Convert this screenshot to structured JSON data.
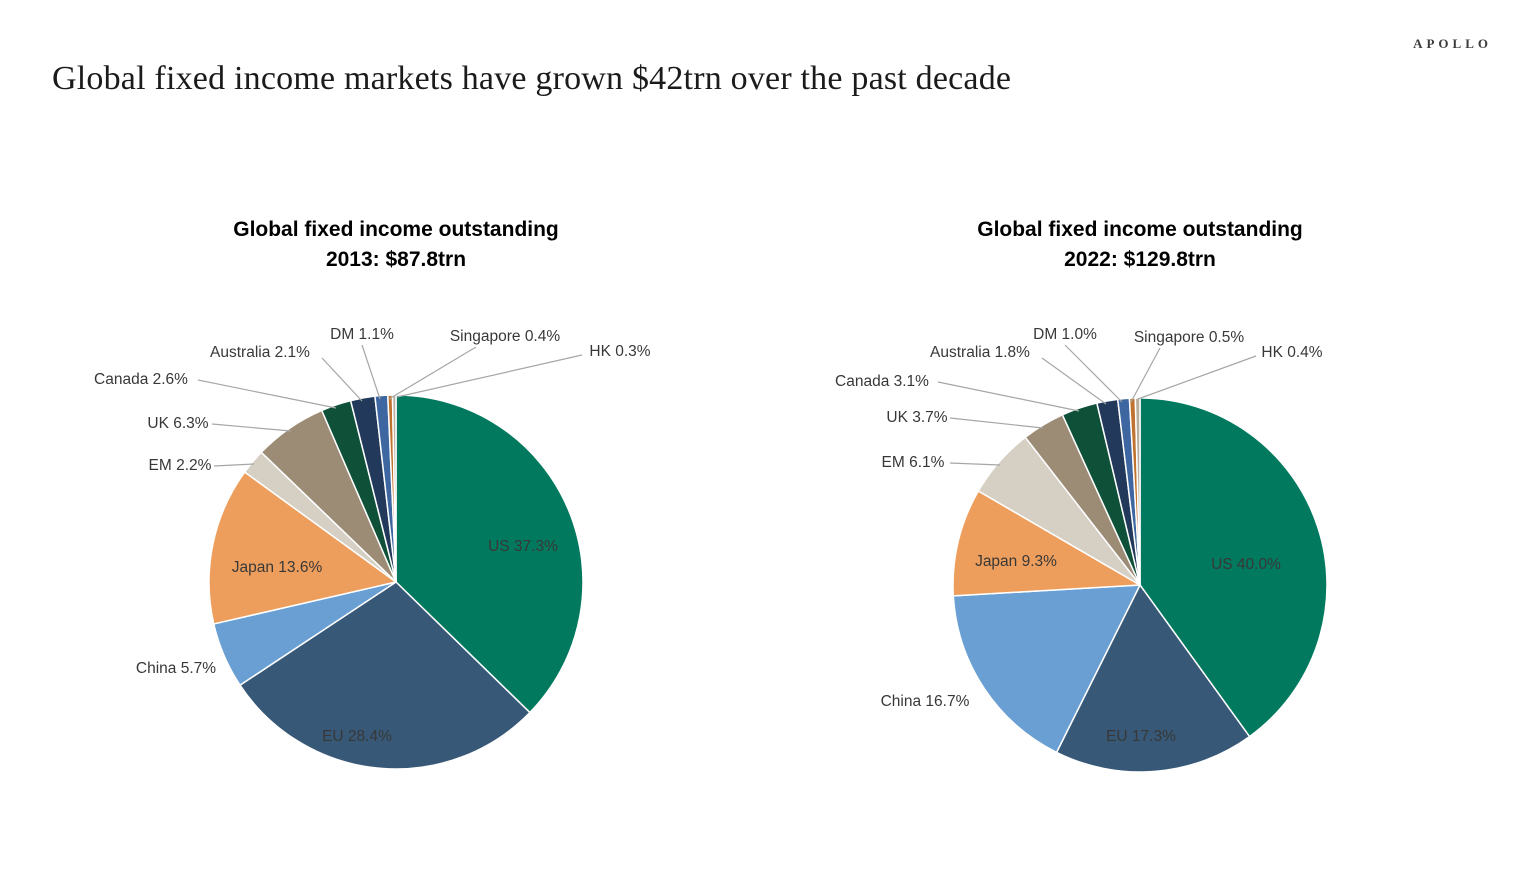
{
  "page": {
    "brand": "APOLLO",
    "title": "Global fixed income markets have grown $42trn over the past decade"
  },
  "chart_data": [
    {
      "type": "pie",
      "title": "Global fixed income outstanding 2013: $87.8trn",
      "title_line1": "Global fixed income outstanding",
      "title_line2": "2013: $87.8trn",
      "year": "2013",
      "total_label": "$87.8trn",
      "start_angle_deg": 0,
      "direction": "clockwise",
      "slice_border_color": "#FFFFFF",
      "leader_line_color": "#A6A6A6",
      "slices": [
        {
          "label": "US",
          "value": 37.3,
          "display": "US 37.3%",
          "color": "#00795E",
          "label_placement": "inside"
        },
        {
          "label": "EU",
          "value": 28.4,
          "display": "EU 28.4%",
          "color": "#375877",
          "label_placement": "inside"
        },
        {
          "label": "China",
          "value": 5.7,
          "display": "China 5.7%",
          "color": "#699FD2",
          "label_placement": "outside"
        },
        {
          "label": "Japan",
          "value": 13.6,
          "display": "Japan 13.6%",
          "color": "#EE9E5C",
          "label_placement": "inside"
        },
        {
          "label": "EM",
          "value": 2.2,
          "display": "EM 2.2%",
          "color": "#D5CFC4",
          "label_placement": "outside"
        },
        {
          "label": "UK",
          "value": 6.3,
          "display": "UK 6.3%",
          "color": "#9C8C76",
          "label_placement": "outside"
        },
        {
          "label": "Canada",
          "value": 2.6,
          "display": "Canada 2.6%",
          "color": "#0E5138",
          "label_placement": "outside"
        },
        {
          "label": "Australia",
          "value": 2.1,
          "display": "Australia 2.1%",
          "color": "#22395B",
          "label_placement": "outside"
        },
        {
          "label": "DM",
          "value": 1.1,
          "display": "DM 1.1%",
          "color": "#3E66A0",
          "label_placement": "outside"
        },
        {
          "label": "Singapore",
          "value": 0.4,
          "display": "Singapore 0.4%",
          "color": "#C0732E",
          "label_placement": "outside"
        },
        {
          "label": "HK",
          "value": 0.3,
          "display": "HK 0.3%",
          "color": "#B7AE9E",
          "label_placement": "outside"
        }
      ]
    },
    {
      "type": "pie",
      "title": "Global fixed income outstanding 2022: $129.8trn",
      "title_line1": "Global fixed income outstanding",
      "title_line2": "2022: $129.8trn",
      "year": "2022",
      "total_label": "$129.8trn",
      "start_angle_deg": 0,
      "direction": "clockwise",
      "slice_border_color": "#FFFFFF",
      "leader_line_color": "#A6A6A6",
      "slices": [
        {
          "label": "US",
          "value": 40.0,
          "display": "US 40.0%",
          "color": "#00795E",
          "label_placement": "inside"
        },
        {
          "label": "EU",
          "value": 17.3,
          "display": "EU 17.3%",
          "color": "#375877",
          "label_placement": "inside"
        },
        {
          "label": "China",
          "value": 16.7,
          "display": "China 16.7%",
          "color": "#699FD2",
          "label_placement": "outside"
        },
        {
          "label": "Japan",
          "value": 9.3,
          "display": "Japan 9.3%",
          "color": "#EE9E5C",
          "label_placement": "inside"
        },
        {
          "label": "EM",
          "value": 6.1,
          "display": "EM 6.1%",
          "color": "#D5CFC4",
          "label_placement": "outside"
        },
        {
          "label": "UK",
          "value": 3.7,
          "display": "UK 3.7%",
          "color": "#9C8C76",
          "label_placement": "outside"
        },
        {
          "label": "Canada",
          "value": 3.1,
          "display": "Canada 3.1%",
          "color": "#0E5138",
          "label_placement": "outside"
        },
        {
          "label": "Australia",
          "value": 1.8,
          "display": "Australia 1.8%",
          "color": "#22395B",
          "label_placement": "outside"
        },
        {
          "label": "DM",
          "value": 1.0,
          "display": "DM 1.0%",
          "color": "#3E66A0",
          "label_placement": "outside"
        },
        {
          "label": "Singapore",
          "value": 0.5,
          "display": "Singapore 0.5%",
          "color": "#C0732E",
          "label_placement": "outside"
        },
        {
          "label": "HK",
          "value": 0.4,
          "display": "HK 0.4%",
          "color": "#B7AE9E",
          "label_placement": "outside"
        }
      ]
    }
  ]
}
